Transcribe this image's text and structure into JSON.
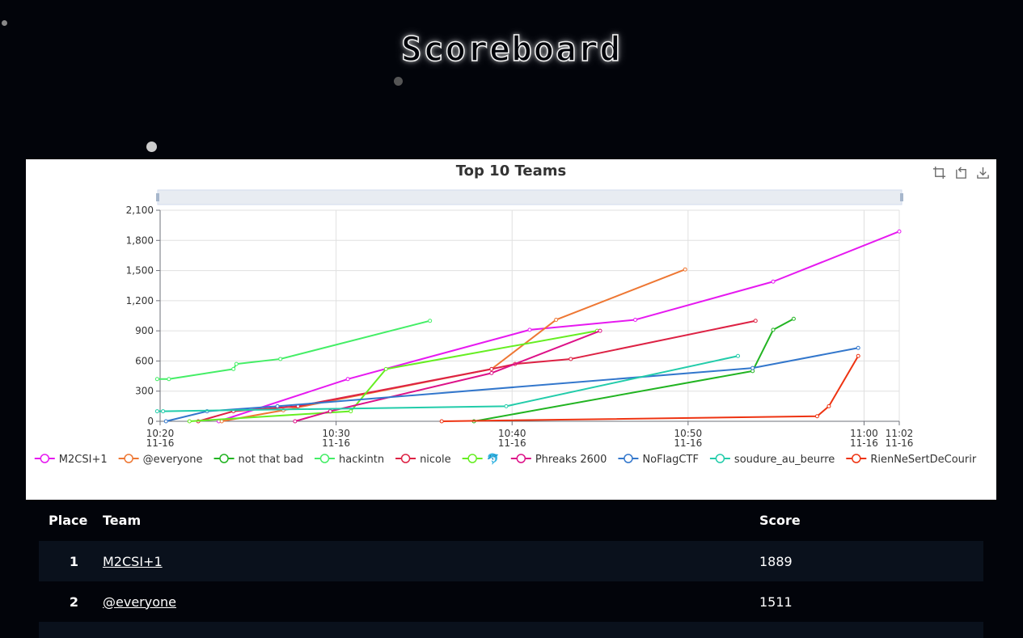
{
  "page": {
    "title": "Scoreboard"
  },
  "toolbar": {
    "icons": [
      "zoom-icon",
      "restore-icon",
      "save-image-icon"
    ]
  },
  "chart_data": {
    "type": "line",
    "title": "Top 10 Teams",
    "xlabel": "",
    "ylabel": "",
    "ylim": [
      0,
      2100
    ],
    "yticks": [
      0,
      300,
      600,
      900,
      1200,
      1500,
      1800,
      2100
    ],
    "ytick_labels": [
      "0",
      "300",
      "600",
      "900",
      "1,200",
      "1,500",
      "1,800",
      "2,100"
    ],
    "xlim": [
      "10:20",
      "11:02"
    ],
    "xticks": [
      "10:20",
      "10:30",
      "10:40",
      "10:50",
      "11:00",
      "11:02"
    ],
    "xtick_date": "11-16",
    "grid": true,
    "legend": "bottom",
    "series": [
      {
        "name": "M2CSI+1",
        "color": "#e619f0",
        "points": [
          [
            "10:23:20",
            0
          ],
          [
            "10:30:40",
            420
          ],
          [
            "10:41:00",
            910
          ],
          [
            "10:47:00",
            1010
          ],
          [
            "10:54:50",
            1390
          ],
          [
            "11:02:00",
            1889
          ]
        ]
      },
      {
        "name": "@everyone",
        "color": "#ee7733",
        "points": [
          [
            "10:23:30",
            0
          ],
          [
            "10:27:00",
            110
          ],
          [
            "10:38:50",
            520
          ],
          [
            "10:42:30",
            1010
          ],
          [
            "10:49:50",
            1511
          ]
        ]
      },
      {
        "name": "not that bad",
        "color": "#22b422",
        "points": [
          [
            "10:37:50",
            0
          ],
          [
            "10:53:40",
            500
          ],
          [
            "10:54:50",
            910
          ],
          [
            "10:56:00",
            1020
          ]
        ]
      },
      {
        "name": "hackintn",
        "color": "#44ee66",
        "points": [
          [
            "10:19:50",
            420
          ],
          [
            "10:20:30",
            420
          ],
          [
            "10:24:10",
            520
          ],
          [
            "10:24:20",
            570
          ],
          [
            "10:26:50",
            620
          ],
          [
            "10:35:20",
            1000
          ]
        ]
      },
      {
        "name": "nicole",
        "color": "#dd2244",
        "points": [
          [
            "10:22:10",
            0
          ],
          [
            "10:24:10",
            100
          ],
          [
            "10:27:50",
            150
          ],
          [
            "10:38:50",
            520
          ],
          [
            "10:40:10",
            570
          ],
          [
            "10:43:20",
            620
          ],
          [
            "10:53:50",
            1000
          ]
        ]
      },
      {
        "name": "🐬",
        "color": "#66ee22",
        "points": [
          [
            "10:21:40",
            0
          ],
          [
            "10:30:50",
            100
          ],
          [
            "10:32:50",
            520
          ],
          [
            "10:44:50",
            900
          ]
        ]
      },
      {
        "name": "Phreaks 2600",
        "color": "#dd1188",
        "points": [
          [
            "10:27:40",
            0
          ],
          [
            "10:29:40",
            100
          ],
          [
            "10:38:50",
            480
          ],
          [
            "10:45:00",
            900
          ]
        ]
      },
      {
        "name": "NoFlagCTF",
        "color": "#3377cc",
        "points": [
          [
            "10:20:20",
            0
          ],
          [
            "10:22:40",
            100
          ],
          [
            "10:26:40",
            150
          ],
          [
            "10:53:40",
            530
          ],
          [
            "10:59:40",
            730
          ]
        ]
      },
      {
        "name": "soudure_au_beurre",
        "color": "#22ccaa",
        "points": [
          [
            "10:19:50",
            100
          ],
          [
            "10:20:10",
            100
          ],
          [
            "10:39:40",
            150
          ],
          [
            "10:52:50",
            650
          ]
        ]
      },
      {
        "name": "RienNeSertDeCourir",
        "color": "#ee3311",
        "points": [
          [
            "10:36:00",
            0
          ],
          [
            "10:57:20",
            50
          ],
          [
            "10:58:00",
            150
          ],
          [
            "10:59:40",
            650
          ]
        ]
      }
    ]
  },
  "table": {
    "headers": {
      "place": "Place",
      "team": "Team",
      "score": "Score"
    },
    "rows": [
      {
        "place": "1",
        "team": "M2CSI+1",
        "score": "1889"
      },
      {
        "place": "2",
        "team": "@everyone",
        "score": "1511"
      }
    ]
  }
}
